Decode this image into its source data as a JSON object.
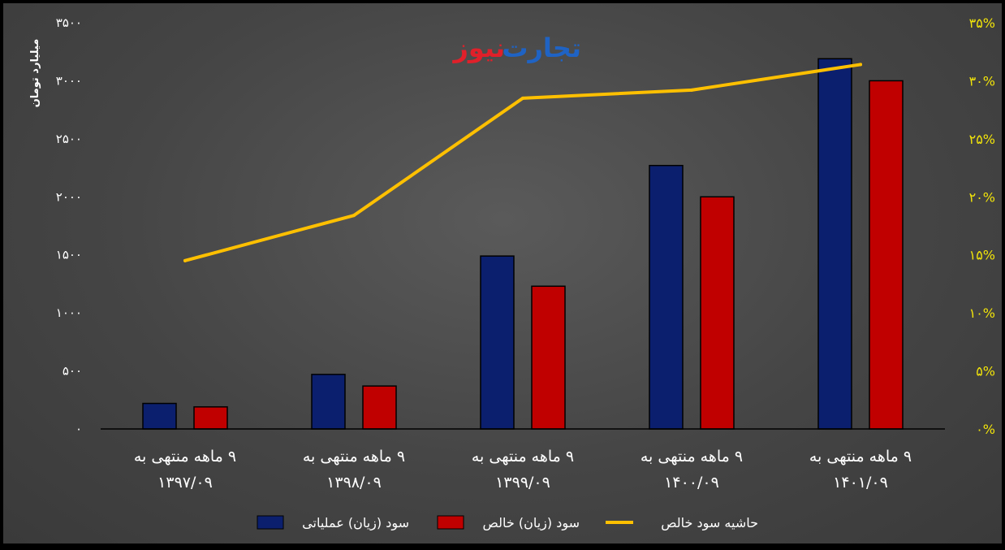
{
  "logo": {
    "part1": "تجارت",
    "part2": "نیوز"
  },
  "chart_data": {
    "type": "bar",
    "y_axis_title": "میلیارد تومان",
    "categories": [
      [
        "۹ ماهه منتهی به",
        "۱۳۹۷/۰۹"
      ],
      [
        "۹ ماهه منتهی به",
        "۱۳۹۸/۰۹"
      ],
      [
        "۹ ماهه منتهی به",
        "۱۳۹۹/۰۹"
      ],
      [
        "۹ ماهه منتهی به",
        "۱۴۰۰/۰۹"
      ],
      [
        "۹ ماهه منتهی به",
        "۱۴۰۱/۰۹"
      ]
    ],
    "left_ticks": [
      "۰",
      "۵۰۰",
      "۱۰۰۰",
      "۱۵۰۰",
      "۲۰۰۰",
      "۲۵۰۰",
      "۳۰۰۰",
      "۳۵۰۰"
    ],
    "right_ticks": [
      "۰%",
      "۵%",
      "۱۰%",
      "۱۵%",
      "۲۰%",
      "۲۵%",
      "۳۰%",
      "۳۵%"
    ],
    "ylim_left": [
      0,
      3500
    ],
    "ylim_right": [
      0,
      35
    ],
    "series": [
      {
        "name": "سود (زیان) عملیاتی",
        "type": "bar",
        "axis": "left",
        "color": "#0b1f6e",
        "values": [
          220,
          470,
          1490,
          2270,
          3190
        ]
      },
      {
        "name": "سود (زیان) خالص",
        "type": "bar",
        "axis": "left",
        "color": "#c00000",
        "values": [
          190,
          370,
          1230,
          2000,
          3000
        ]
      },
      {
        "name": "حاشیه سود خالص",
        "type": "line",
        "axis": "right",
        "color": "#ffc000",
        "values": [
          14.5,
          18.4,
          28.5,
          29.2,
          31.4
        ]
      }
    ],
    "legend_position": "bottom",
    "grid": false
  }
}
